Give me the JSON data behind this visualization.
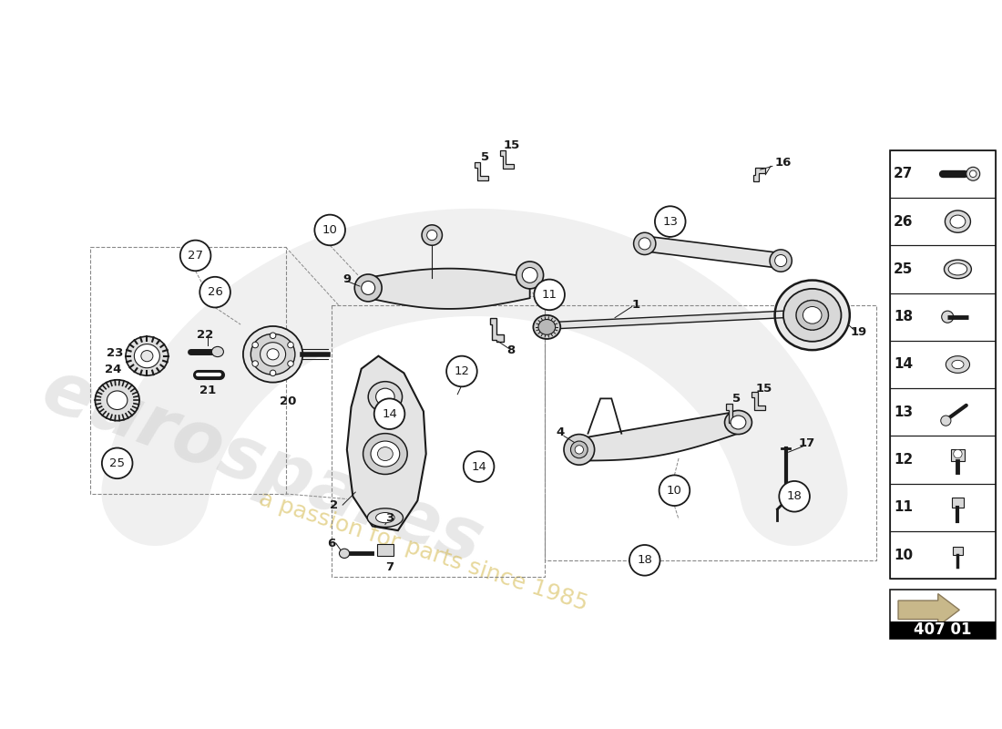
{
  "bg_color": "#ffffff",
  "line_color": "#1a1a1a",
  "dashed_color": "#888888",
  "part_number_box": "407 01",
  "sidebar_items": [
    {
      "num": 27
    },
    {
      "num": 26
    },
    {
      "num": 25
    },
    {
      "num": 18
    },
    {
      "num": 14
    },
    {
      "num": 13
    },
    {
      "num": 12
    },
    {
      "num": 11
    },
    {
      "num": 10
    }
  ],
  "watermark_text1": "eurospares",
  "watermark_text2": "a passion for parts since 1985"
}
